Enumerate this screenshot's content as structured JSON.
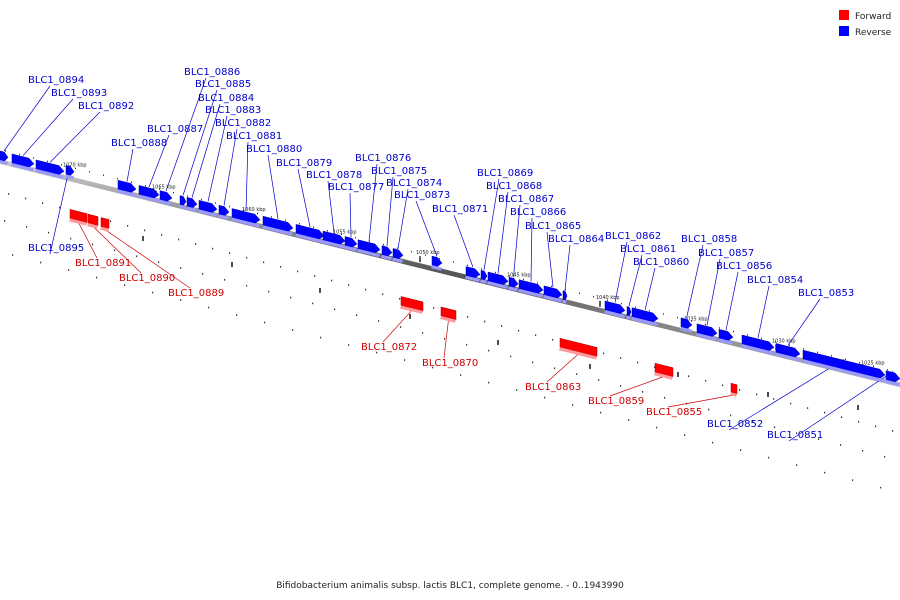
{
  "title": "Bifidobacterium animalis subsp. lactis BLC1, complete genome. - 0..1943990",
  "legend": [
    {
      "label": "Forward",
      "color": "#ff0000"
    },
    {
      "label": "Reverse",
      "color": "#0000ff"
    }
  ],
  "colors": {
    "forward": "#ff0000",
    "reverse": "#0000ff",
    "forward_label": "#cc0000",
    "reverse_label": "#0000cc",
    "axis": "#888888"
  },
  "ticks": [
    "1070 kbp",
    "1065 kbp",
    "1060 kbp",
    "1055 kbp",
    "1050 kbp",
    "1045 kbp",
    "1040 kbp",
    "1035 kbp",
    "1030 kbp",
    "1025 kbp"
  ],
  "genes": [
    {
      "id": "BLC1_0894",
      "strand": "reverse"
    },
    {
      "id": "BLC1_0893",
      "strand": "reverse"
    },
    {
      "id": "BLC1_0892",
      "strand": "reverse"
    },
    {
      "id": "BLC1_0886",
      "strand": "reverse"
    },
    {
      "id": "BLC1_0885",
      "strand": "reverse"
    },
    {
      "id": "BLC1_0884",
      "strand": "reverse"
    },
    {
      "id": "BLC1_0883",
      "strand": "reverse"
    },
    {
      "id": "BLC1_0882",
      "strand": "reverse"
    },
    {
      "id": "BLC1_0881",
      "strand": "reverse"
    },
    {
      "id": "BLC1_0880",
      "strand": "reverse"
    },
    {
      "id": "BLC1_0887",
      "strand": "reverse"
    },
    {
      "id": "BLC1_0888",
      "strand": "reverse"
    },
    {
      "id": "BLC1_0879",
      "strand": "reverse"
    },
    {
      "id": "BLC1_0878",
      "strand": "reverse"
    },
    {
      "id": "BLC1_0877",
      "strand": "reverse"
    },
    {
      "id": "BLC1_0876",
      "strand": "reverse"
    },
    {
      "id": "BLC1_0875",
      "strand": "reverse"
    },
    {
      "id": "BLC1_0874",
      "strand": "reverse"
    },
    {
      "id": "BLC1_0873",
      "strand": "reverse"
    },
    {
      "id": "BLC1_0871",
      "strand": "reverse"
    },
    {
      "id": "BLC1_0869",
      "strand": "reverse"
    },
    {
      "id": "BLC1_0868",
      "strand": "reverse"
    },
    {
      "id": "BLC1_0867",
      "strand": "reverse"
    },
    {
      "id": "BLC1_0866",
      "strand": "reverse"
    },
    {
      "id": "BLC1_0865",
      "strand": "reverse"
    },
    {
      "id": "BLC1_0864",
      "strand": "reverse"
    },
    {
      "id": "BLC1_0862",
      "strand": "reverse"
    },
    {
      "id": "BLC1_0861",
      "strand": "reverse"
    },
    {
      "id": "BLC1_0860",
      "strand": "reverse"
    },
    {
      "id": "BLC1_0858",
      "strand": "reverse"
    },
    {
      "id": "BLC1_0857",
      "strand": "reverse"
    },
    {
      "id": "BLC1_0856",
      "strand": "reverse"
    },
    {
      "id": "BLC1_0854",
      "strand": "reverse"
    },
    {
      "id": "BLC1_0853",
      "strand": "reverse"
    },
    {
      "id": "BLC1_0895",
      "strand": "reverse"
    },
    {
      "id": "BLC1_0852",
      "strand": "reverse"
    },
    {
      "id": "BLC1_0851",
      "strand": "reverse"
    },
    {
      "id": "BLC1_0891",
      "strand": "forward"
    },
    {
      "id": "BLC1_0890",
      "strand": "forward"
    },
    {
      "id": "BLC1_0889",
      "strand": "forward"
    },
    {
      "id": "BLC1_0872",
      "strand": "forward"
    },
    {
      "id": "BLC1_0870",
      "strand": "forward"
    },
    {
      "id": "BLC1_0863",
      "strand": "forward"
    },
    {
      "id": "BLC1_0859",
      "strand": "forward"
    },
    {
      "id": "BLC1_0855",
      "strand": "forward"
    }
  ]
}
